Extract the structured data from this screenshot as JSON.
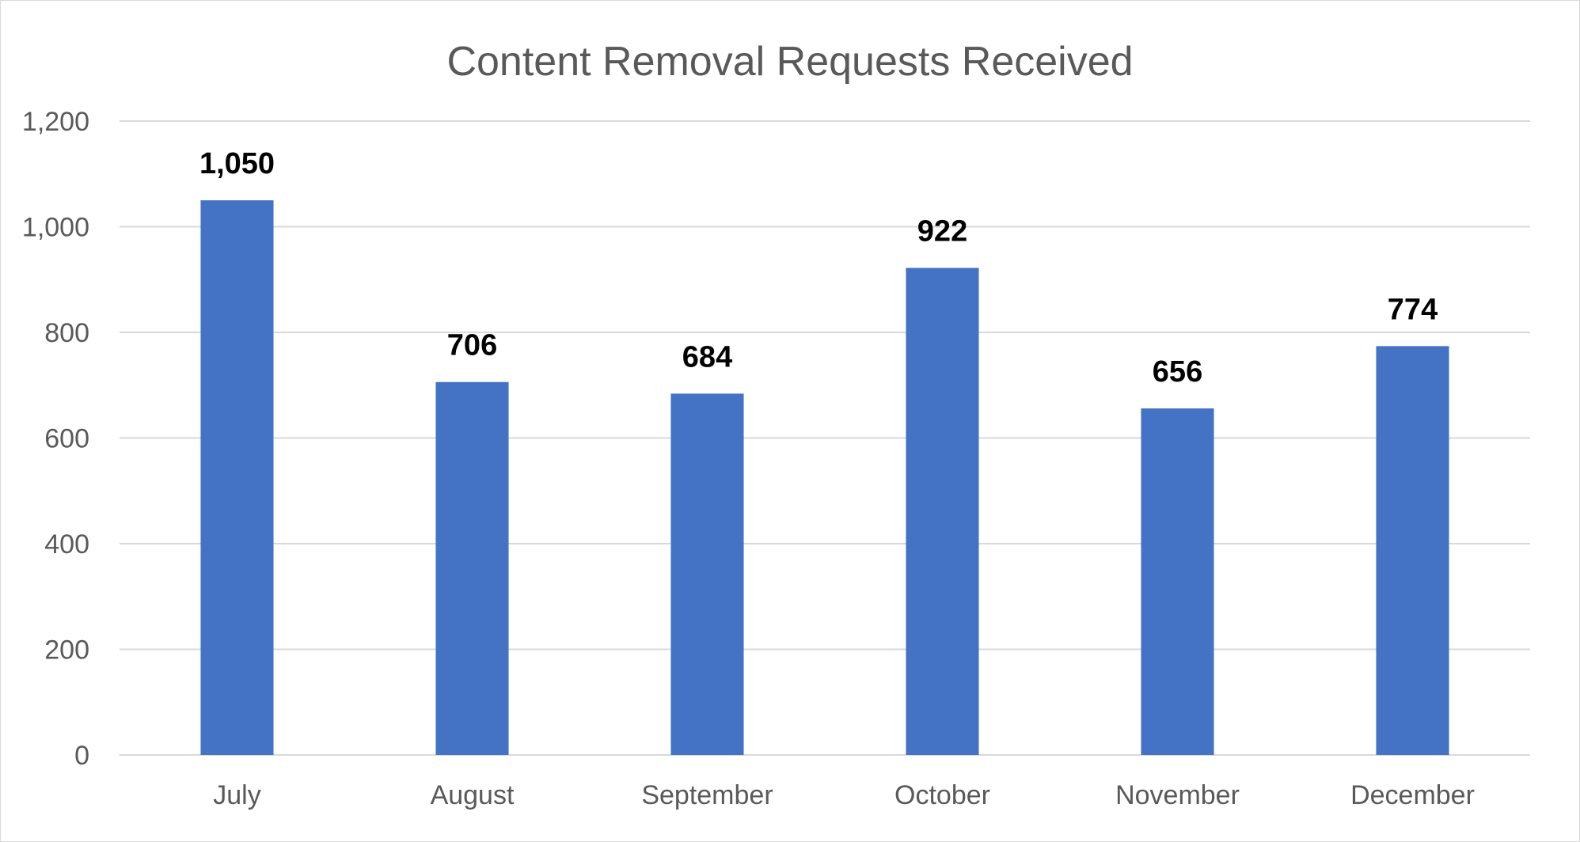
{
  "chart_data": {
    "type": "bar",
    "title": "Content Removal Requests Received",
    "categories": [
      "July",
      "August",
      "September",
      "October",
      "November",
      "December"
    ],
    "values": [
      1050,
      706,
      684,
      922,
      656,
      774
    ],
    "data_labels": [
      "1,050",
      "706",
      "684",
      "922",
      "656",
      "774"
    ],
    "ylim": [
      0,
      1200
    ],
    "yticks": [
      0,
      200,
      400,
      600,
      800,
      1000,
      1200
    ],
    "ytick_labels": [
      "0",
      "200",
      "400",
      "600",
      "800",
      "1,000",
      "1,200"
    ],
    "xlabel": "",
    "ylabel": "",
    "grid": true,
    "legend": "none",
    "bar_color": "#4472C4"
  }
}
